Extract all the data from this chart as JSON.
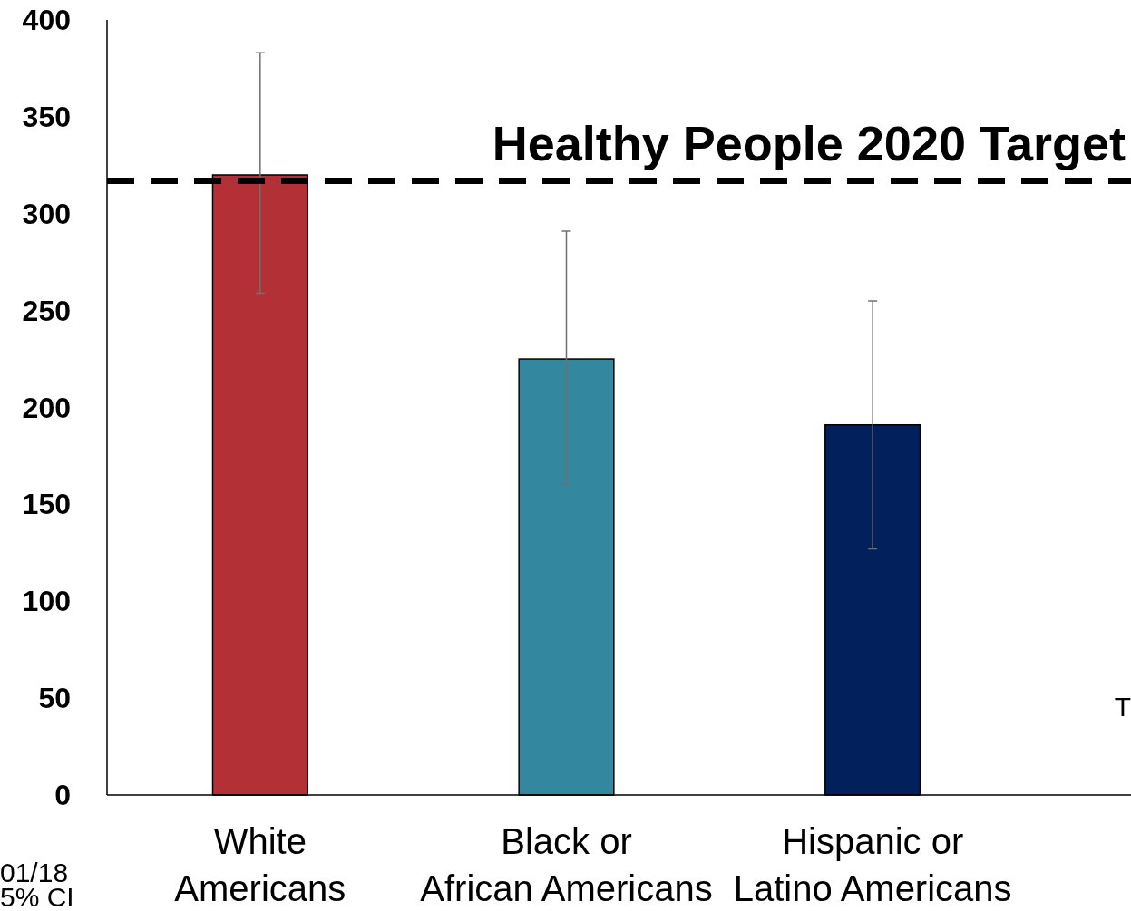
{
  "chart_data": {
    "type": "bar",
    "categories": [
      "White Americans",
      "Black or African Americans",
      "Hispanic or Latino Americans"
    ],
    "values": [
      320,
      225,
      191
    ],
    "colors": [
      "#b33036",
      "#33879e",
      "#02205c"
    ],
    "errors": [
      [
        259,
        383
      ],
      [
        160,
        291
      ],
      [
        127,
        255
      ]
    ],
    "ylim": [
      0,
      400
    ],
    "yticks": [
      0,
      50,
      100,
      150,
      200,
      250,
      300,
      350,
      400
    ],
    "grid": false,
    "ref_lines": [
      {
        "axis": "y",
        "value": 317,
        "label": "Healthy People 2020 Target",
        "color": "#000000",
        "line_style": "dashed"
      }
    ],
    "annotations": [
      "01/18",
      "5% CI",
      "T"
    ]
  }
}
